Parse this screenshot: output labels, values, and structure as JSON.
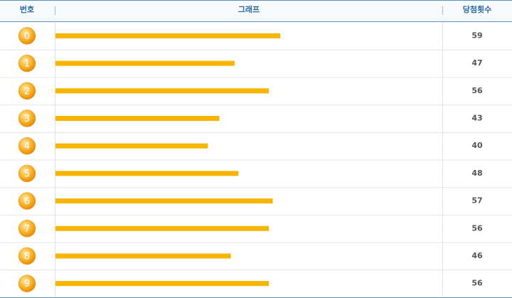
{
  "chart_data": {
    "type": "bar",
    "columns": [
      "번호",
      "그래프",
      "당첨횟수"
    ],
    "categories": [
      "0",
      "1",
      "2",
      "3",
      "4",
      "5",
      "6",
      "7",
      "8",
      "9"
    ],
    "values": [
      59,
      47,
      56,
      43,
      40,
      48,
      57,
      56,
      46,
      56
    ],
    "color": "#f7b500"
  }
}
